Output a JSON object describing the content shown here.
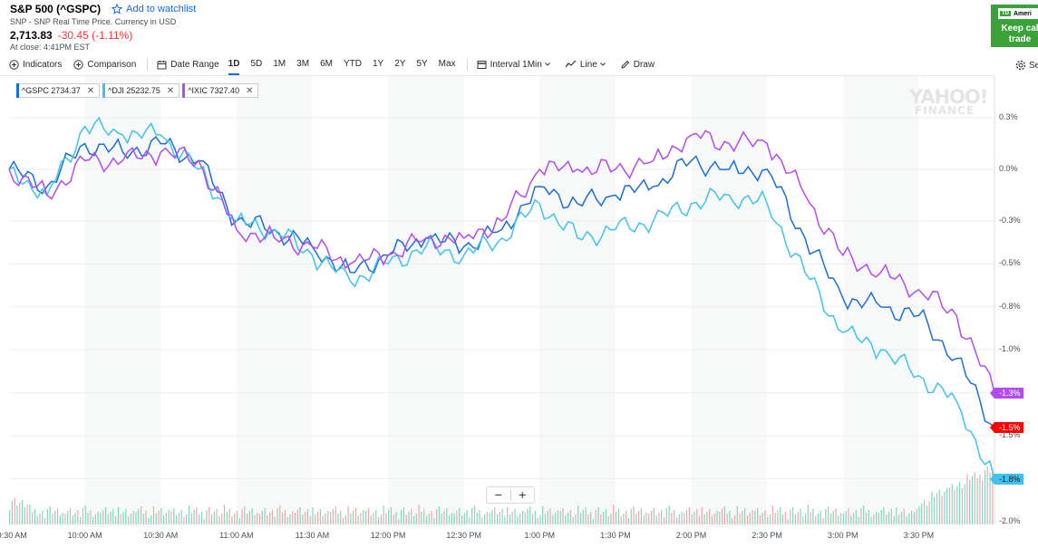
{
  "header": {
    "title": "S&P 500 (^GSPC)",
    "watchlist_label": "Add to watchlist",
    "subtitle": "SNP - SNP Real Time Price. Currency in USD",
    "price": "2,713.83",
    "change": "-30.45 (-1.11%)",
    "close_time": "At close: 4:41PM EST"
  },
  "ad": {
    "logo_text": "Ameri",
    "logo_badge": "TD",
    "line1": "Keep cal",
    "line2": "trade"
  },
  "toolbar": {
    "indicators": "Indicators",
    "comparison": "Comparison",
    "date_range": "Date Range",
    "ranges": [
      "1D",
      "5D",
      "1M",
      "3M",
      "6M",
      "YTD",
      "1Y",
      "2Y",
      "5Y",
      "Max"
    ],
    "active_range": "1D",
    "interval": "Interval",
    "interval_value": "1Min",
    "chart_type": "Line",
    "draw": "Draw",
    "settings": "Se"
  },
  "chips": [
    {
      "label": "^GSPC 2734.37",
      "color": "#1a6fd6"
    },
    {
      "label": "^DJI 25232.75",
      "color": "#3fc3ee"
    },
    {
      "label": "^IXIC 7327.40",
      "color": "#b24cf0"
    }
  ],
  "watermark": {
    "line1": "YAHOO!",
    "line2": "FINANCE"
  },
  "zoom": {
    "minus": "−",
    "plus": "+"
  },
  "chart_data": {
    "type": "line",
    "x": [
      "9:30",
      "9:45",
      "10:00",
      "10:15",
      "10:30",
      "10:45",
      "11:00",
      "11:15",
      "11:30",
      "11:45",
      "12:00",
      "12:15",
      "12:30",
      "12:45",
      "13:00",
      "13:15",
      "13:30",
      "13:45",
      "14:00",
      "14:15",
      "14:30",
      "14:45",
      "15:00",
      "15:15",
      "15:30",
      "15:45",
      "16:00"
    ],
    "x_tick_labels": [
      "9:30 AM",
      "10:00 AM",
      "10:30 AM",
      "11:00 AM",
      "11:30 AM",
      "12:00 PM",
      "12:30 PM",
      "1:00 PM",
      "1:30 PM",
      "2:00 PM",
      "2:30 PM",
      "3:00 PM",
      "3:30 PM"
    ],
    "y_tick_labels": [
      "0.3%",
      "0.0%",
      "-0.3%",
      "-0.5%",
      "-0.8%",
      "-1.0%",
      "-1.3%",
      "-1.5%",
      "-1.8%",
      "-2.0%"
    ],
    "y_tick_values": [
      0.3,
      0.0,
      -0.3,
      -0.55,
      -0.8,
      -1.05,
      -1.3,
      -1.55,
      -1.8,
      -2.05
    ],
    "ylim": [
      -2.05,
      0.45
    ],
    "series": [
      {
        "name": "^GSPC",
        "color": "#1a6fd6",
        "end_label": "-1.5%",
        "end_label_color": "#ff0000",
        "values": [
          0.0,
          -0.1,
          0.15,
          0.1,
          0.15,
          0.05,
          -0.3,
          -0.35,
          -0.45,
          -0.6,
          -0.5,
          -0.4,
          -0.45,
          -0.35,
          -0.1,
          -0.2,
          -0.15,
          -0.1,
          0.05,
          0.0,
          0.0,
          -0.4,
          -0.75,
          -0.8,
          -0.85,
          -1.1,
          -1.5
        ]
      },
      {
        "name": "^DJI",
        "color": "#3fc3ee",
        "end_label": "-1.8%",
        "end_label_color": "#3fc3ee",
        "values": [
          0.0,
          -0.15,
          0.25,
          0.2,
          0.2,
          0.0,
          -0.3,
          -0.35,
          -0.5,
          -0.65,
          -0.55,
          -0.45,
          -0.5,
          -0.4,
          -0.2,
          -0.4,
          -0.35,
          -0.3,
          -0.2,
          -0.15,
          -0.2,
          -0.6,
          -0.95,
          -1.05,
          -1.2,
          -1.35,
          -1.8
        ]
      },
      {
        "name": "^IXIC",
        "color": "#b24cf0",
        "end_label": "-1.3%",
        "end_label_color": "#b24cf0",
        "values": [
          0.0,
          -0.15,
          0.05,
          0.05,
          0.1,
          0.05,
          -0.35,
          -0.4,
          -0.45,
          -0.55,
          -0.5,
          -0.4,
          -0.4,
          -0.3,
          0.0,
          0.0,
          0.0,
          0.05,
          0.2,
          0.15,
          0.15,
          -0.15,
          -0.5,
          -0.6,
          -0.7,
          -0.85,
          -1.3
        ]
      }
    ],
    "volume": true
  }
}
